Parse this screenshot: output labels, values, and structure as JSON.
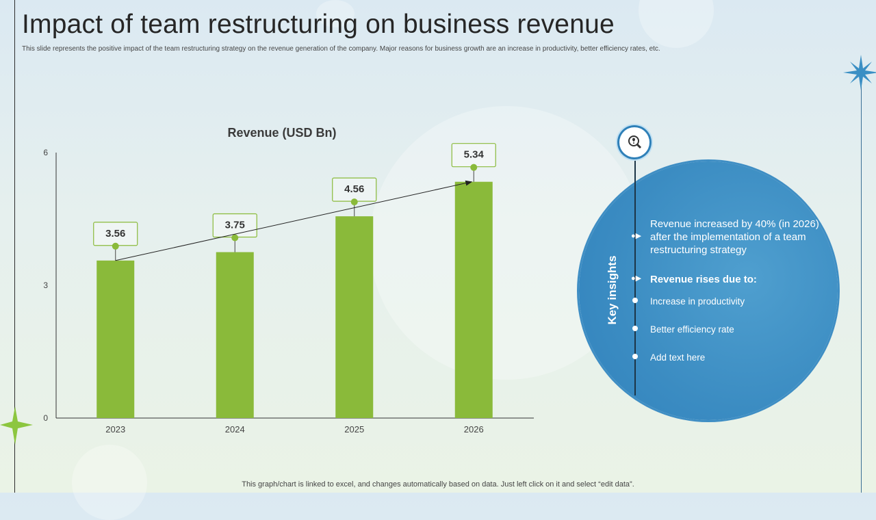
{
  "header": {
    "title": "Impact of team restructuring on business revenue",
    "subtitle": "This slide represents the positive impact of the team restructuring strategy on the revenue generation of the company. Major reasons for business growth are an increase in productivity, better efficiency rates, etc."
  },
  "chart_data": {
    "type": "bar",
    "title": "Revenue (USD Bn)",
    "categories": [
      "2023",
      "2024",
      "2025",
      "2026"
    ],
    "values": [
      3.56,
      3.75,
      4.56,
      5.34
    ],
    "value_labels": [
      "3.56",
      "3.75",
      "4.56",
      "5.34"
    ],
    "ylim": [
      0,
      6
    ],
    "yticks": [
      "0",
      "3",
      "6"
    ],
    "xlabel": "",
    "ylabel": "",
    "grid": false,
    "trend_arrow": true,
    "bar_color": "#8aba3a",
    "label_border_color": "#8aba3a"
  },
  "insights": {
    "heading": "Key insights",
    "main_text": "Revenue increased by 40% (in 2026) after the implementation of a team restructuring strategy",
    "reasons_heading": "Revenue rises due to:",
    "items": [
      "Increase in productivity",
      "Better efficiency rate",
      "Add text here"
    ],
    "icon": "lightbulb-magnifier-icon",
    "circle_color": "#3b8cc2"
  },
  "footer": {
    "note": "This graph/chart is linked to excel, and changes automatically based on data. Just left click on it and select “edit data”."
  },
  "decor": {
    "left_star": "green-star-icon",
    "right_star": "blue-star-icon",
    "left_star_color": "#8cc63f",
    "right_star_color": "#3a8fc4"
  }
}
